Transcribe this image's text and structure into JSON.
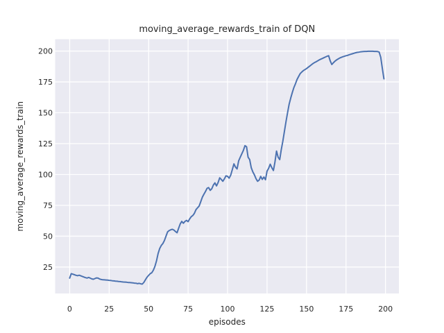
{
  "chart_data": {
    "type": "line",
    "title": "moving_average_rewards_train of DQN",
    "xlabel": "episodes",
    "ylabel": "moving_average_rewards_train",
    "x_ticks": [
      0,
      25,
      50,
      75,
      100,
      125,
      150,
      175,
      200
    ],
    "y_ticks": [
      25,
      50,
      75,
      100,
      125,
      150,
      175,
      200
    ],
    "xlim": [
      -9.2,
      208.5
    ],
    "ylim": [
      3.6,
      209.6
    ],
    "grid": true,
    "legend_position": "none",
    "style": {
      "figure_bg": "#FFFFFF",
      "panel_bg": "#EAEAF2",
      "grid_color": "#FFFFFF",
      "line_color": "#4C72B0",
      "text_color": "#262626"
    },
    "series": [
      {
        "name": "moving_average_rewards_train",
        "points": [
          [
            0,
            16.0
          ],
          [
            1,
            19.6
          ],
          [
            2,
            19.2
          ],
          [
            3,
            18.8
          ],
          [
            4,
            18.3
          ],
          [
            5,
            18.0
          ],
          [
            6,
            18.4
          ],
          [
            7,
            17.9
          ],
          [
            8,
            17.4
          ],
          [
            9,
            16.9
          ],
          [
            10,
            16.4
          ],
          [
            11,
            16.1
          ],
          [
            12,
            16.6
          ],
          [
            13,
            16.0
          ],
          [
            14,
            15.4
          ],
          [
            15,
            15.1
          ],
          [
            16,
            15.7
          ],
          [
            17,
            16.2
          ],
          [
            18,
            16.0
          ],
          [
            19,
            15.3
          ],
          [
            20,
            14.9
          ],
          [
            21,
            14.7
          ],
          [
            22,
            14.6
          ],
          [
            23,
            14.5
          ],
          [
            24,
            14.4
          ],
          [
            25,
            14.2
          ],
          [
            26,
            14.1
          ],
          [
            27,
            13.9
          ],
          [
            28,
            13.8
          ],
          [
            29,
            13.6
          ],
          [
            30,
            13.5
          ],
          [
            31,
            13.3
          ],
          [
            32,
            13.2
          ],
          [
            33,
            13.0
          ],
          [
            34,
            12.9
          ],
          [
            35,
            12.8
          ],
          [
            36,
            12.7
          ],
          [
            37,
            12.5
          ],
          [
            38,
            12.4
          ],
          [
            39,
            12.3
          ],
          [
            40,
            12.2
          ],
          [
            41,
            12.0
          ],
          [
            42,
            11.9
          ],
          [
            43,
            11.5
          ],
          [
            44,
            11.8
          ],
          [
            45,
            11.4
          ],
          [
            46,
            11.2
          ],
          [
            47,
            12.6
          ],
          [
            48,
            14.8
          ],
          [
            49,
            16.8
          ],
          [
            50,
            18.2
          ],
          [
            51,
            19.6
          ],
          [
            52,
            20.4
          ],
          [
            53,
            22.5
          ],
          [
            54,
            25.5
          ],
          [
            55,
            30.0
          ],
          [
            56,
            36.0
          ],
          [
            57,
            40.0
          ],
          [
            58,
            42.5
          ],
          [
            59,
            44.0
          ],
          [
            60,
            46.5
          ],
          [
            61,
            50.0
          ],
          [
            62,
            53.5
          ],
          [
            63,
            54.5
          ],
          [
            64,
            55.2
          ],
          [
            65,
            55.6
          ],
          [
            66,
            55.0
          ],
          [
            67,
            53.8
          ],
          [
            68,
            52.8
          ],
          [
            69,
            56.5
          ],
          [
            70,
            60.0
          ],
          [
            71,
            62.0
          ],
          [
            72,
            60.5
          ],
          [
            73,
            62.0
          ],
          [
            74,
            62.8
          ],
          [
            75,
            61.8
          ],
          [
            76,
            64.0
          ],
          [
            77,
            65.8
          ],
          [
            78,
            66.8
          ],
          [
            79,
            68.5
          ],
          [
            80,
            71.5
          ],
          [
            81,
            73.0
          ],
          [
            82,
            74.5
          ],
          [
            83,
            78.0
          ],
          [
            84,
            81.5
          ],
          [
            85,
            84.0
          ],
          [
            86,
            86.2
          ],
          [
            87,
            88.8
          ],
          [
            88,
            89.4
          ],
          [
            89,
            87.1
          ],
          [
            90,
            88.5
          ],
          [
            91,
            91.5
          ],
          [
            92,
            93.2
          ],
          [
            93,
            90.7
          ],
          [
            94,
            93.5
          ],
          [
            95,
            97.3
          ],
          [
            96,
            96.0
          ],
          [
            97,
            94.5
          ],
          [
            98,
            96.5
          ],
          [
            99,
            98.9
          ],
          [
            100,
            98.5
          ],
          [
            101,
            97.0
          ],
          [
            102,
            99.5
          ],
          [
            103,
            104.0
          ],
          [
            104,
            108.6
          ],
          [
            105,
            106.0
          ],
          [
            106,
            104.5
          ],
          [
            107,
            111.0
          ],
          [
            108,
            114.0
          ],
          [
            109,
            116.7
          ],
          [
            110,
            119.5
          ],
          [
            111,
            123.3
          ],
          [
            112,
            122.4
          ],
          [
            113,
            114.0
          ],
          [
            114,
            112.0
          ],
          [
            115,
            105.4
          ],
          [
            116,
            102.0
          ],
          [
            117,
            99.7
          ],
          [
            118,
            96.6
          ],
          [
            119,
            94.5
          ],
          [
            120,
            95.5
          ],
          [
            121,
            98.4
          ],
          [
            122,
            96.0
          ],
          [
            123,
            97.9
          ],
          [
            124,
            95.7
          ],
          [
            125,
            102.7
          ],
          [
            126,
            105.0
          ],
          [
            127,
            108.3
          ],
          [
            128,
            105.5
          ],
          [
            129,
            103.2
          ],
          [
            130,
            110.0
          ],
          [
            131,
            119.0
          ],
          [
            132,
            114.0
          ],
          [
            133,
            112.0
          ],
          [
            134,
            120.0
          ],
          [
            135,
            127.0
          ],
          [
            136,
            135.0
          ],
          [
            137,
            143.0
          ],
          [
            138,
            150.0
          ],
          [
            139,
            157.0
          ],
          [
            140,
            162.0
          ],
          [
            141,
            166.5
          ],
          [
            142,
            170.4
          ],
          [
            143,
            173.5
          ],
          [
            144,
            177.0
          ],
          [
            145,
            179.5
          ],
          [
            146,
            181.7
          ],
          [
            147,
            183.0
          ],
          [
            148,
            184.2
          ],
          [
            149,
            185.0
          ],
          [
            150,
            185.8
          ],
          [
            151,
            186.8
          ],
          [
            152,
            187.8
          ],
          [
            153,
            188.8
          ],
          [
            154,
            189.8
          ],
          [
            155,
            190.6
          ],
          [
            156,
            191.3
          ],
          [
            157,
            192.0
          ],
          [
            158,
            192.8
          ],
          [
            159,
            193.4
          ],
          [
            160,
            194.0
          ],
          [
            161,
            194.6
          ],
          [
            162,
            195.2
          ],
          [
            163,
            195.8
          ],
          [
            164,
            196.2
          ],
          [
            165,
            192.0
          ],
          [
            166,
            189.1
          ],
          [
            167,
            190.5
          ],
          [
            168,
            191.8
          ],
          [
            169,
            192.8
          ],
          [
            170,
            193.6
          ],
          [
            171,
            194.3
          ],
          [
            172,
            194.9
          ],
          [
            173,
            195.4
          ],
          [
            174,
            195.8
          ],
          [
            175,
            196.2
          ],
          [
            176,
            196.5
          ],
          [
            177,
            197.0
          ],
          [
            178,
            197.4
          ],
          [
            179,
            197.8
          ],
          [
            180,
            198.2
          ],
          [
            181,
            198.6
          ],
          [
            182,
            198.9
          ],
          [
            183,
            199.1
          ],
          [
            184,
            199.3
          ],
          [
            185,
            199.5
          ],
          [
            186,
            199.6
          ],
          [
            187,
            199.7
          ],
          [
            188,
            199.7
          ],
          [
            189,
            199.8
          ],
          [
            190,
            199.8
          ],
          [
            191,
            199.8
          ],
          [
            192,
            199.8
          ],
          [
            193,
            199.7
          ],
          [
            194,
            199.7
          ],
          [
            195,
            199.6
          ],
          [
            196,
            199.2
          ],
          [
            197,
            195.0
          ],
          [
            198,
            186.0
          ],
          [
            199,
            177.5
          ]
        ]
      }
    ]
  }
}
